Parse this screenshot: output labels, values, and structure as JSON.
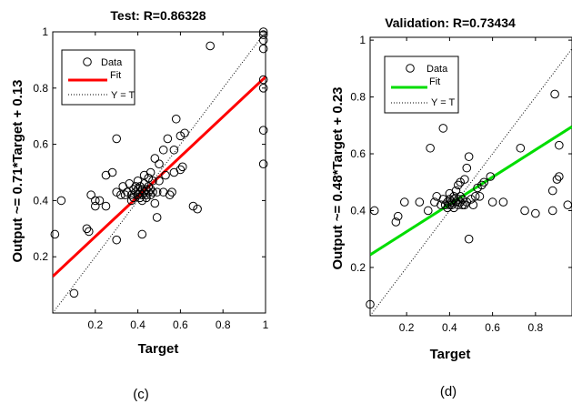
{
  "chart_data": [
    {
      "type": "scatter",
      "title": "Test: R=0.86328",
      "xlabel": "Target",
      "ylabel": "Output ~= 0.71*Target + 0.13",
      "xlim": [
        0,
        1
      ],
      "ylim": [
        0,
        1
      ],
      "xticks": [
        "0.2",
        "0.4",
        "0.6",
        "0.8",
        "1"
      ],
      "yticks": [
        "0.2",
        "0.4",
        "0.6",
        "0.8",
        "1"
      ],
      "grid": false,
      "legend": {
        "placement": "top-left",
        "entries": [
          "Data",
          "Fit",
          "Y = T"
        ]
      },
      "fit_color": "#ff0000",
      "fit": {
        "slope": 0.71,
        "intercept": 0.13
      },
      "caption": "(c)",
      "series": [
        {
          "name": "Data",
          "points": [
            [
              0.01,
              0.28
            ],
            [
              0.04,
              0.4
            ],
            [
              0.1,
              0.07
            ],
            [
              0.16,
              0.3
            ],
            [
              0.17,
              0.29
            ],
            [
              0.18,
              0.42
            ],
            [
              0.2,
              0.4
            ],
            [
              0.2,
              0.38
            ],
            [
              0.22,
              0.4
            ],
            [
              0.25,
              0.38
            ],
            [
              0.25,
              0.49
            ],
            [
              0.28,
              0.5
            ],
            [
              0.3,
              0.43
            ],
            [
              0.3,
              0.62
            ],
            [
              0.3,
              0.26
            ],
            [
              0.32,
              0.42
            ],
            [
              0.33,
              0.45
            ],
            [
              0.34,
              0.42
            ],
            [
              0.35,
              0.43
            ],
            [
              0.36,
              0.46
            ],
            [
              0.37,
              0.4
            ],
            [
              0.37,
              0.42
            ],
            [
              0.38,
              0.44
            ],
            [
              0.38,
              0.41
            ],
            [
              0.39,
              0.43
            ],
            [
              0.39,
              0.45
            ],
            [
              0.4,
              0.42
            ],
            [
              0.4,
              0.44
            ],
            [
              0.4,
              0.47
            ],
            [
              0.41,
              0.41
            ],
            [
              0.41,
              0.43
            ],
            [
              0.41,
              0.45
            ],
            [
              0.42,
              0.42
            ],
            [
              0.42,
              0.44
            ],
            [
              0.42,
              0.4
            ],
            [
              0.42,
              0.28
            ],
            [
              0.43,
              0.43
            ],
            [
              0.43,
              0.46
            ],
            [
              0.43,
              0.49
            ],
            [
              0.44,
              0.42
            ],
            [
              0.44,
              0.44
            ],
            [
              0.44,
              0.41
            ],
            [
              0.45,
              0.43
            ],
            [
              0.45,
              0.45
            ],
            [
              0.45,
              0.48
            ],
            [
              0.46,
              0.42
            ],
            [
              0.46,
              0.44
            ],
            [
              0.46,
              0.5
            ],
            [
              0.47,
              0.43
            ],
            [
              0.47,
              0.47
            ],
            [
              0.48,
              0.39
            ],
            [
              0.48,
              0.55
            ],
            [
              0.49,
              0.43
            ],
            [
              0.49,
              0.34
            ],
            [
              0.5,
              0.47
            ],
            [
              0.5,
              0.53
            ],
            [
              0.52,
              0.43
            ],
            [
              0.52,
              0.58
            ],
            [
              0.53,
              0.49
            ],
            [
              0.54,
              0.62
            ],
            [
              0.55,
              0.42
            ],
            [
              0.56,
              0.43
            ],
            [
              0.57,
              0.58
            ],
            [
              0.57,
              0.5
            ],
            [
              0.58,
              0.69
            ],
            [
              0.6,
              0.51
            ],
            [
              0.6,
              0.63
            ],
            [
              0.61,
              0.52
            ],
            [
              0.62,
              0.64
            ],
            [
              0.66,
              0.38
            ],
            [
              0.68,
              0.37
            ],
            [
              0.74,
              0.95
            ],
            [
              0.99,
              0.53
            ],
            [
              0.99,
              0.65
            ],
            [
              0.99,
              0.8
            ],
            [
              0.99,
              0.83
            ],
            [
              0.99,
              0.94
            ],
            [
              0.99,
              0.97
            ],
            [
              0.99,
              0.99
            ],
            [
              0.99,
              1.0
            ]
          ]
        }
      ]
    },
    {
      "type": "scatter",
      "title": "Validation: R=0.73434",
      "xlabel": "Target",
      "ylabel": "Output ~= 0.48*Target + 0.23",
      "xlim": [
        0.03,
        0.97
      ],
      "ylim": [
        0.03,
        1.01
      ],
      "xticks": [
        "0.2",
        "0.4",
        "0.6",
        "0.8"
      ],
      "yticks": [
        "0.2",
        "0.4",
        "0.6",
        "0.8",
        "1"
      ],
      "grid": false,
      "legend": {
        "placement": "top-left",
        "entries": [
          "Data",
          "Fit",
          "Y = T"
        ]
      },
      "fit_color": "#00dd00",
      "fit": {
        "slope": 0.48,
        "intercept": 0.23
      },
      "caption": "(d)",
      "series": [
        {
          "name": "Data",
          "points": [
            [
              0.03,
              0.07
            ],
            [
              0.05,
              0.4
            ],
            [
              0.15,
              0.36
            ],
            [
              0.16,
              0.38
            ],
            [
              0.19,
              0.43
            ],
            [
              0.26,
              0.43
            ],
            [
              0.3,
              0.4
            ],
            [
              0.31,
              0.62
            ],
            [
              0.33,
              0.43
            ],
            [
              0.34,
              0.45
            ],
            [
              0.36,
              0.42
            ],
            [
              0.37,
              0.44
            ],
            [
              0.37,
              0.69
            ],
            [
              0.38,
              0.42
            ],
            [
              0.39,
              0.41
            ],
            [
              0.39,
              0.43
            ],
            [
              0.4,
              0.44
            ],
            [
              0.4,
              0.42
            ],
            [
              0.4,
              0.46
            ],
            [
              0.41,
              0.43
            ],
            [
              0.41,
              0.42
            ],
            [
              0.42,
              0.44
            ],
            [
              0.42,
              0.41
            ],
            [
              0.42,
              0.45
            ],
            [
              0.43,
              0.43
            ],
            [
              0.43,
              0.47
            ],
            [
              0.44,
              0.42
            ],
            [
              0.44,
              0.44
            ],
            [
              0.44,
              0.49
            ],
            [
              0.45,
              0.43
            ],
            [
              0.45,
              0.45
            ],
            [
              0.45,
              0.5
            ],
            [
              0.46,
              0.42
            ],
            [
              0.46,
              0.44
            ],
            [
              0.47,
              0.51
            ],
            [
              0.47,
              0.42
            ],
            [
              0.48,
              0.43
            ],
            [
              0.48,
              0.55
            ],
            [
              0.49,
              0.59
            ],
            [
              0.49,
              0.3
            ],
            [
              0.5,
              0.44
            ],
            [
              0.51,
              0.42
            ],
            [
              0.52,
              0.45
            ],
            [
              0.53,
              0.48
            ],
            [
              0.54,
              0.45
            ],
            [
              0.55,
              0.49
            ],
            [
              0.56,
              0.5
            ],
            [
              0.59,
              0.52
            ],
            [
              0.6,
              0.43
            ],
            [
              0.65,
              0.43
            ],
            [
              0.73,
              0.62
            ],
            [
              0.75,
              0.4
            ],
            [
              0.8,
              0.39
            ],
            [
              0.88,
              0.4
            ],
            [
              0.88,
              0.47
            ],
            [
              0.89,
              0.81
            ],
            [
              0.9,
              0.51
            ],
            [
              0.91,
              0.52
            ],
            [
              0.91,
              0.63
            ],
            [
              0.95,
              0.42
            ]
          ]
        }
      ]
    }
  ]
}
